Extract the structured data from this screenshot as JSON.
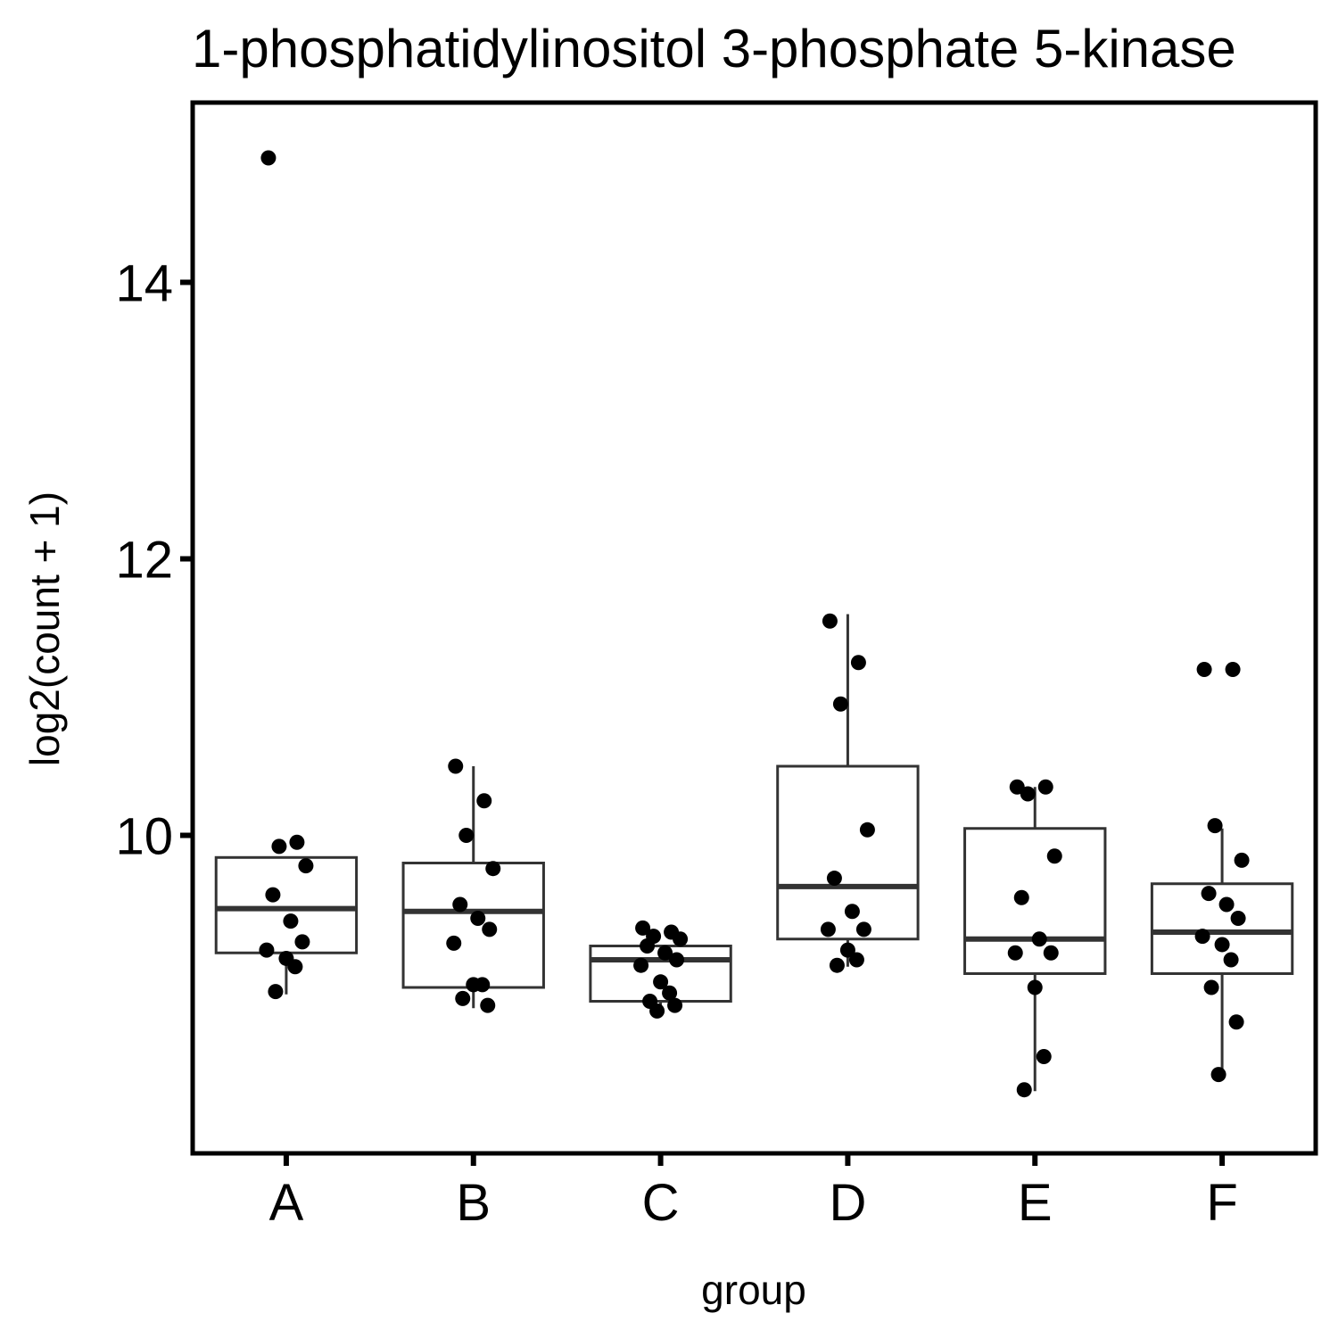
{
  "chart_data": {
    "type": "boxplot",
    "title": "1-phosphatidylinositol 3-phosphate 5-kinase",
    "xlabel": "group",
    "ylabel": "log2(count + 1)",
    "ylim": [
      7.7,
      15.3
    ],
    "yticks": [
      10,
      12,
      14
    ],
    "categories": [
      "A",
      "B",
      "C",
      "D",
      "E",
      "F"
    ],
    "grid": false,
    "legend": "none",
    "colors": {
      "box": "#333333",
      "point": "#000000",
      "frame": "#000000"
    },
    "boxes": [
      {
        "group": "A",
        "whisker_low": 8.85,
        "q1": 9.15,
        "median": 9.47,
        "q3": 9.84,
        "whisker_high": 9.84
      },
      {
        "group": "B",
        "whisker_low": 8.75,
        "q1": 8.9,
        "median": 9.45,
        "q3": 9.8,
        "whisker_high": 10.5
      },
      {
        "group": "C",
        "whisker_low": 8.75,
        "q1": 8.8,
        "median": 9.1,
        "q3": 9.2,
        "whisker_high": 9.2
      },
      {
        "group": "D",
        "whisker_low": 9.05,
        "q1": 9.25,
        "median": 9.63,
        "q3": 10.5,
        "whisker_high": 11.6
      },
      {
        "group": "E",
        "whisker_low": 8.15,
        "q1": 9.0,
        "median": 9.25,
        "q3": 10.05,
        "whisker_high": 10.35
      },
      {
        "group": "F",
        "whisker_low": 8.25,
        "q1": 9.0,
        "median": 9.3,
        "q3": 9.65,
        "whisker_high": 10.05
      }
    ],
    "points": [
      {
        "group": "A",
        "values": [
          14.9,
          9.95,
          9.92,
          9.78,
          9.57,
          9.38,
          9.23,
          9.17,
          9.11,
          9.05,
          8.87
        ]
      },
      {
        "group": "B",
        "values": [
          10.5,
          10.25,
          10.0,
          9.76,
          9.5,
          9.4,
          9.32,
          9.22,
          8.92,
          8.92,
          8.82,
          8.77
        ]
      },
      {
        "group": "C",
        "values": [
          9.33,
          9.3,
          9.27,
          9.25,
          9.2,
          9.15,
          9.1,
          9.06,
          8.94,
          8.86,
          8.8,
          8.77,
          8.73
        ]
      },
      {
        "group": "D",
        "values": [
          11.55,
          11.25,
          10.95,
          10.04,
          9.69,
          9.45,
          9.32,
          9.32,
          9.17,
          9.1,
          9.06
        ]
      },
      {
        "group": "E",
        "values": [
          10.35,
          10.35,
          10.3,
          9.85,
          9.55,
          9.25,
          9.15,
          9.15,
          8.9,
          8.4,
          8.16
        ]
      },
      {
        "group": "F",
        "values": [
          11.2,
          11.2,
          10.07,
          9.82,
          9.58,
          9.5,
          9.4,
          9.27,
          9.21,
          9.1,
          8.9,
          8.65,
          8.27
        ]
      }
    ]
  }
}
